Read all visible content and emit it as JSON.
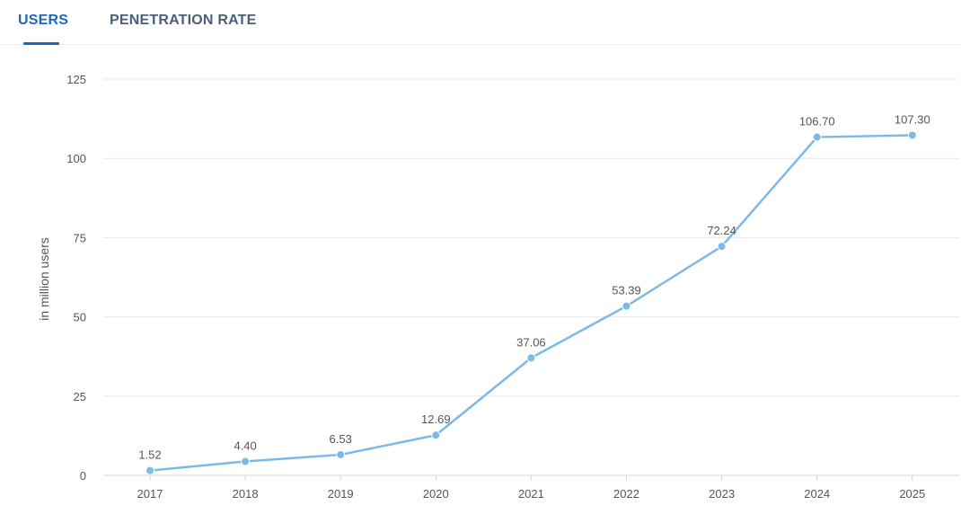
{
  "tabs": [
    {
      "label": "USERS",
      "active": true
    },
    {
      "label": "PENETRATION RATE",
      "active": false
    }
  ],
  "colors": {
    "accent": "#1f66c1",
    "line": "#7db9e6",
    "grid": "#e6e9ed",
    "text": "#555555"
  },
  "chart_data": {
    "type": "line",
    "title": "",
    "xlabel": "",
    "ylabel": "in million users",
    "categories": [
      "2017",
      "2018",
      "2019",
      "2020",
      "2021",
      "2022",
      "2023",
      "2024",
      "2025"
    ],
    "values": [
      1.52,
      4.4,
      6.53,
      12.69,
      37.06,
      53.39,
      72.24,
      106.7,
      107.3
    ],
    "data_labels": [
      "1.52",
      "4.40",
      "6.53",
      "12.69",
      "37.06",
      "53.39",
      "72.24",
      "106.70",
      "107.30"
    ],
    "ylim": [
      0,
      125
    ],
    "yticks": [
      0,
      25,
      50,
      75,
      100,
      125
    ],
    "grid": true
  }
}
